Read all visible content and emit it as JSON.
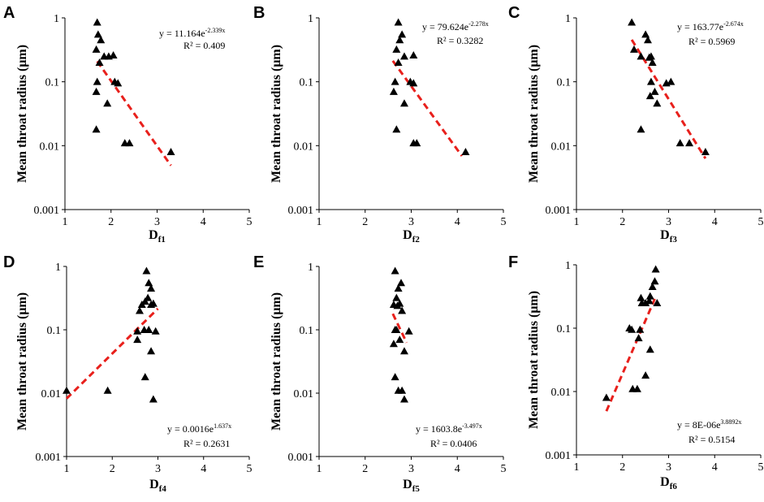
{
  "chart_data": [
    {
      "type": "scatter",
      "panel": "A",
      "xlabel_main": "D",
      "xlabel_sub": "f1",
      "ylabel": "Mean throat radius (μm)",
      "xlim": [
        1,
        5
      ],
      "ylim": [
        0.001,
        1
      ],
      "yscale": "log",
      "xticks": [
        "1",
        "2",
        "3",
        "4",
        "5"
      ],
      "yticks": [
        "0.001",
        "0.01",
        "0.1",
        "1"
      ],
      "equation_base": "y = 11.164e",
      "equation_exp": "-2.339x",
      "r2": "R² = 0.409",
      "x": [
        1.7,
        1.72,
        1.78,
        1.68,
        1.75,
        1.85,
        2.05,
        1.95,
        2.08,
        1.7,
        1.68,
        2.15,
        1.92,
        1.68,
        2.3,
        2.4,
        3.3
      ],
      "y": [
        0.85,
        0.55,
        0.45,
        0.32,
        0.2,
        0.25,
        0.26,
        0.25,
        0.1,
        0.1,
        0.07,
        0.095,
        0.046,
        0.018,
        0.011,
        0.011,
        0.008
      ],
      "trend_x": [
        1.7,
        3.3
      ],
      "trend_y": [
        0.209,
        0.0049
      ]
    },
    {
      "type": "scatter",
      "panel": "B",
      "xlabel_main": "D",
      "xlabel_sub": "f2",
      "ylabel": "Mean throat radius (μm)",
      "xlim": [
        1,
        5
      ],
      "ylim": [
        0.001,
        1
      ],
      "yscale": "log",
      "xticks": [
        "1",
        "2",
        "3",
        "4",
        "5"
      ],
      "yticks": [
        "0.001",
        "0.01",
        "0.1",
        "1"
      ],
      "equation_base": "y = 79.624e",
      "equation_exp": "-2.278x",
      "r2": "R² = 0.3282",
      "x": [
        2.72,
        2.8,
        2.75,
        2.68,
        2.72,
        2.85,
        3.05,
        2.65,
        2.62,
        2.98,
        3.05,
        2.85,
        2.68,
        3.05,
        3.12,
        4.18
      ],
      "y": [
        0.85,
        0.55,
        0.45,
        0.32,
        0.2,
        0.25,
        0.26,
        0.1,
        0.07,
        0.1,
        0.095,
        0.046,
        0.018,
        0.011,
        0.011,
        0.008
      ],
      "trend_x": [
        2.6,
        4.1
      ],
      "trend_y": [
        0.213,
        0.0069
      ]
    },
    {
      "type": "scatter",
      "panel": "C",
      "xlabel_main": "D",
      "xlabel_sub": "f3",
      "ylabel": "Mean throat radius (μm)",
      "xlim": [
        1,
        5
      ],
      "ylim": [
        0.001,
        1
      ],
      "yscale": "log",
      "xticks": [
        "1",
        "2",
        "3",
        "4",
        "5"
      ],
      "yticks": [
        "0.001",
        "0.01",
        "0.1",
        "1"
      ],
      "equation_base": "y = 163.77e",
      "equation_exp": "-2.674x",
      "r2": "R² = 0.5969",
      "x": [
        2.2,
        2.5,
        2.55,
        2.25,
        2.62,
        2.58,
        2.65,
        2.4,
        2.62,
        2.95,
        3.05,
        2.7,
        2.6,
        2.75,
        2.4,
        3.25,
        3.45,
        3.8
      ],
      "y": [
        0.85,
        0.55,
        0.45,
        0.32,
        0.25,
        0.24,
        0.2,
        0.25,
        0.1,
        0.095,
        0.1,
        0.07,
        0.06,
        0.046,
        0.018,
        0.011,
        0.011,
        0.008
      ],
      "trend_x": [
        2.2,
        3.8
      ],
      "trend_y": [
        0.455,
        0.0063
      ]
    },
    {
      "type": "scatter",
      "panel": "D",
      "xlabel_main": "D",
      "xlabel_sub": "f4",
      "ylabel": "Mean throat radius (μm)",
      "xlim": [
        1,
        5
      ],
      "ylim": [
        0.001,
        1
      ],
      "yscale": "log",
      "xticks": [
        "1",
        "2",
        "3",
        "4",
        "5"
      ],
      "yticks": [
        "0.001",
        "0.01",
        "0.1",
        "1"
      ],
      "equation_base": "y = 0.0016e",
      "equation_exp": "1.637x",
      "r2": "R² = 0.2631",
      "x": [
        2.75,
        2.8,
        2.85,
        2.78,
        2.72,
        2.65,
        2.85,
        2.9,
        2.6,
        2.8,
        2.55,
        2.7,
        2.95,
        2.55,
        2.85,
        2.72,
        1.9,
        1.0,
        2.9
      ],
      "y": [
        0.85,
        0.55,
        0.45,
        0.32,
        0.28,
        0.25,
        0.25,
        0.26,
        0.2,
        0.1,
        0.095,
        0.1,
        0.095,
        0.07,
        0.046,
        0.018,
        0.011,
        0.011,
        0.008
      ],
      "trend_x": [
        1.0,
        3.0
      ],
      "trend_y": [
        0.0082,
        0.216
      ]
    },
    {
      "type": "scatter",
      "panel": "E",
      "xlabel_main": "D",
      "xlabel_sub": "f5",
      "ylabel": "Mean throat radius (μm)",
      "xlim": [
        1,
        5
      ],
      "ylim": [
        0.001,
        1
      ],
      "yscale": "log",
      "xticks": [
        "1",
        "2",
        "3",
        "4",
        "5"
      ],
      "yticks": [
        "0.001",
        "0.01",
        "0.1",
        "1"
      ],
      "equation_base": "y = 1603.8e",
      "equation_exp": "-3.497x",
      "r2": "R² = 0.0406",
      "x": [
        2.65,
        2.78,
        2.72,
        2.68,
        2.7,
        2.62,
        2.75,
        2.8,
        2.68,
        2.65,
        2.95,
        2.75,
        2.62,
        2.85,
        2.65,
        2.72,
        2.8,
        2.85
      ],
      "y": [
        0.85,
        0.55,
        0.45,
        0.32,
        0.24,
        0.25,
        0.26,
        0.2,
        0.1,
        0.1,
        0.095,
        0.07,
        0.06,
        0.046,
        0.018,
        0.011,
        0.011,
        0.008
      ],
      "trend_x": [
        2.6,
        2.9
      ],
      "trend_y": [
        0.179,
        0.0627
      ]
    },
    {
      "type": "scatter",
      "panel": "F",
      "xlabel_main": "D",
      "xlabel_sub": "f6",
      "ylabel": "Mean throat radius (μm)",
      "xlim": [
        1,
        5
      ],
      "ylim": [
        0.001,
        1
      ],
      "yscale": "log",
      "xticks": [
        "1",
        "2",
        "3",
        "4",
        "5"
      ],
      "yticks": [
        "0.001",
        "0.01",
        "0.1",
        "1"
      ],
      "equation_base": "y = 8E-06e",
      "equation_exp": "3.8892x",
      "r2": "R² = 0.5154",
      "x": [
        2.72,
        2.7,
        2.65,
        2.6,
        2.4,
        2.5,
        2.58,
        2.75,
        2.42,
        2.15,
        2.2,
        2.38,
        2.35,
        2.6,
        2.5,
        2.22,
        2.32,
        1.65
      ],
      "y": [
        0.85,
        0.55,
        0.45,
        0.32,
        0.3,
        0.25,
        0.27,
        0.25,
        0.25,
        0.1,
        0.095,
        0.095,
        0.07,
        0.046,
        0.018,
        0.011,
        0.011,
        0.008
      ],
      "trend_x": [
        1.65,
        2.7
      ],
      "trend_y": [
        0.0049,
        0.29
      ]
    }
  ]
}
